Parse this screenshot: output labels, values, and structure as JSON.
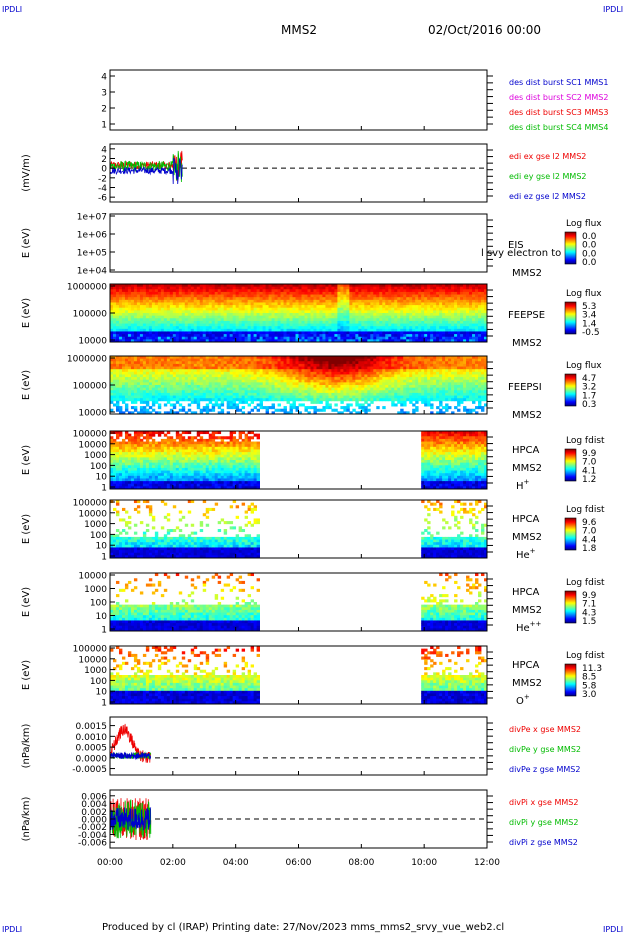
{
  "header": {
    "corner_tl": "IPDLI",
    "corner_tr": "IPDLI",
    "corner_bl": "IPDLI",
    "corner_br": "IPDLI",
    "spacecraft": "MMS2",
    "datetime": "02/Oct/2016 00:00"
  },
  "footer": {
    "text": "Produced by cl (IRAP)   Printing date: 27/Nov/2023   mms_mms2_srvy_vue_web2.cl"
  },
  "colors": {
    "red": "#ee0000",
    "green": "#00bb00",
    "blue": "#0000cc",
    "magenta": "#dd00dd"
  },
  "chart_data": {
    "type": "multi-panel time series",
    "x_ticks": [
      "00:00",
      "02:00",
      "04:00",
      "06:00",
      "08:00",
      "10:00",
      "12:00"
    ],
    "x_range_hours": [
      0,
      12
    ],
    "panels": [
      {
        "id": "burst",
        "type": "line",
        "ylabel": "",
        "yticks": [
          "4",
          "3",
          "2",
          "1"
        ],
        "legend": [
          {
            "text": "des dist burst SC1 MMS1",
            "color": "#0000cc"
          },
          {
            "text": "des dist burst SC2 MMS2",
            "color": "#dd00dd"
          },
          {
            "text": "des dist burst SC3 MMS3",
            "color": "#ee0000"
          },
          {
            "text": "des dist burst SC4 MMS4",
            "color": "#00bb00"
          }
        ]
      },
      {
        "id": "edi",
        "type": "line",
        "ylabel": "(mV/m)",
        "yticks": [
          "4",
          "2",
          "0",
          "-2",
          "-4",
          "-6"
        ],
        "ylim": [
          -7,
          5
        ],
        "data_extent_hours": [
          0,
          2.3
        ],
        "legend": [
          {
            "text": "edi ex gse l2 MMS2",
            "color": "#ee0000"
          },
          {
            "text": "edi ey gse l2 MMS2",
            "color": "#00bb00"
          },
          {
            "text": "edi ez gse l2 MMS2",
            "color": "#0000cc"
          }
        ]
      },
      {
        "id": "eis",
        "type": "heatmap",
        "ylabel": "E (eV)",
        "yticks": [
          "1e+07",
          "1e+06",
          "1e+05",
          "1e+04"
        ],
        "label1": "EIS",
        "label2": "MMS2",
        "overlay_text": "l svy electron to",
        "cbar_title": "Log flux",
        "cbar_ticks": [
          "0.0",
          "0.0",
          "0.0",
          "0.0"
        ]
      },
      {
        "id": "feepse",
        "type": "heatmap",
        "ylabel": "E (eV)",
        "yticks": [
          "1000000",
          "100000",
          "10000"
        ],
        "label1": "FEEPSE",
        "label2": "MMS2",
        "cbar_title": "Log flux",
        "cbar_ticks": [
          "5.3",
          "3.4",
          "1.4",
          "-0.5"
        ]
      },
      {
        "id": "feepsi",
        "type": "heatmap",
        "ylabel": "E (eV)",
        "yticks": [
          "1000000",
          "100000",
          "10000"
        ],
        "label1": "FEEPSI",
        "label2": "MMS2",
        "cbar_title": "Log flux",
        "cbar_ticks": [
          "4.7",
          "3.2",
          "1.7",
          "0.3"
        ]
      },
      {
        "id": "hpca_h",
        "type": "heatmap",
        "ylabel": "E (eV)",
        "yticks": [
          "100000",
          "10000",
          "1000",
          "100",
          "10",
          "1"
        ],
        "label1": "HPCA",
        "label2": "MMS2",
        "species": "H",
        "species_sup": "+",
        "cbar_title": "Log fdist",
        "cbar_ticks": [
          "9.9",
          "7.0",
          "4.1",
          "1.2"
        ]
      },
      {
        "id": "hpca_he",
        "type": "heatmap",
        "ylabel": "E (eV)",
        "yticks": [
          "100000",
          "10000",
          "1000",
          "100",
          "10",
          "1"
        ],
        "label1": "HPCA",
        "label2": "MMS2",
        "species": "He",
        "species_sup": "+",
        "cbar_title": "Log fdist",
        "cbar_ticks": [
          "9.6",
          "7.0",
          "4.4",
          "1.8"
        ]
      },
      {
        "id": "hpca_hepp",
        "type": "heatmap",
        "ylabel": "E (eV)",
        "yticks": [
          "10000",
          "1000",
          "100",
          "10",
          "1"
        ],
        "label1": "HPCA",
        "label2": "MMS2",
        "species": "He",
        "species_sup": "++",
        "cbar_title": "Log fdist",
        "cbar_ticks": [
          "9.9",
          "7.1",
          "4.3",
          "1.5"
        ]
      },
      {
        "id": "hpca_o",
        "type": "heatmap",
        "ylabel": "E (eV)",
        "yticks": [
          "100000",
          "10000",
          "1000",
          "100",
          "10",
          "1"
        ],
        "label1": "HPCA",
        "label2": "MMS2",
        "species": "O",
        "species_sup": "+",
        "cbar_title": "Log fdist",
        "cbar_ticks": [
          "11.3",
          "8.5",
          "5.8",
          "3.0"
        ]
      },
      {
        "id": "divpe",
        "type": "line",
        "ylabel": "(nPa/km)",
        "yticks": [
          "0.0015",
          "0.0010",
          "0.0005",
          "0.0000",
          "-0.0005"
        ],
        "ylim": [
          -0.0008,
          0.0019
        ],
        "data_extent_hours": [
          0,
          1.3
        ],
        "legend": [
          {
            "text": "divPe x gse MMS2",
            "color": "#ee0000"
          },
          {
            "text": "divPe y gse MMS2",
            "color": "#00bb00"
          },
          {
            "text": "divPe z gse MMS2",
            "color": "#0000cc"
          }
        ]
      },
      {
        "id": "divpi",
        "type": "line",
        "ylabel": "(nPa/km)",
        "yticks": [
          "0.006",
          "0.004",
          "0.002",
          "0.000",
          "-0.002",
          "-0.004",
          "-0.006"
        ],
        "ylim": [
          -0.0075,
          0.0075
        ],
        "data_extent_hours": [
          0,
          1.3
        ],
        "legend": [
          {
            "text": "divPi x gse MMS2",
            "color": "#ee0000"
          },
          {
            "text": "divPi y gse MMS2",
            "color": "#00bb00"
          },
          {
            "text": "divPi z gse MMS2",
            "color": "#0000cc"
          }
        ]
      }
    ]
  }
}
